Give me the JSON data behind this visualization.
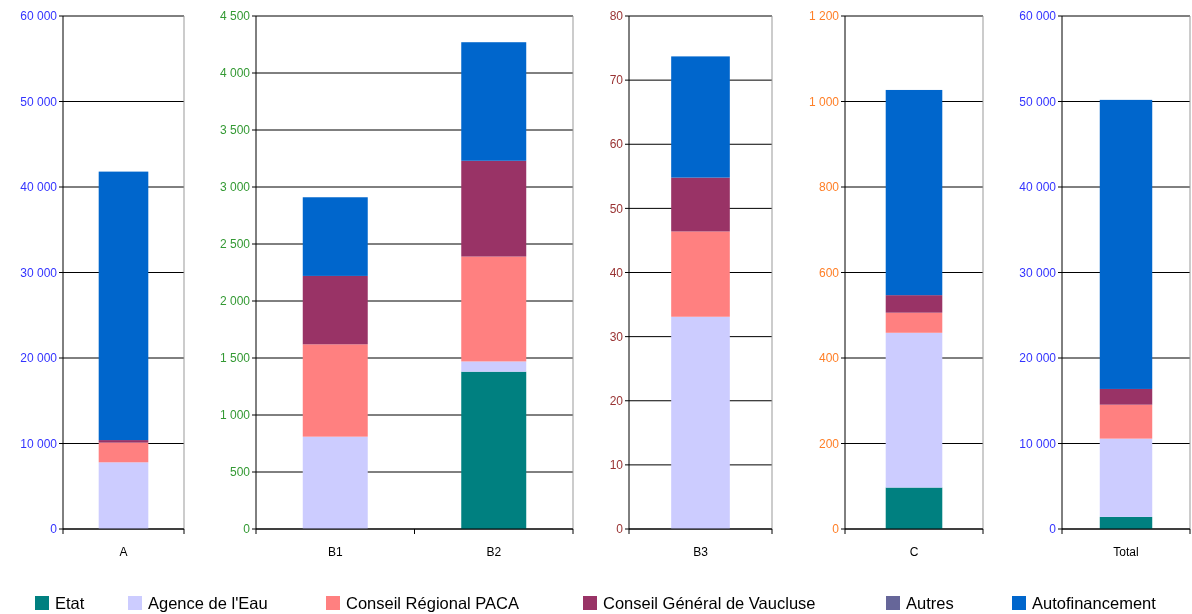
{
  "chart_data": [
    {
      "type": "bar",
      "stacked": true,
      "categories": [
        "A"
      ],
      "ylim": [
        0,
        60000
      ],
      "yticks": [
        0,
        {
          "value": 10000,
          "label": "10 000"
        },
        {
          "value": 20000,
          "label": "20 000"
        },
        {
          "value": 30000,
          "label": "30 000"
        },
        {
          "value": 40000,
          "label": "40 000"
        },
        {
          "value": 50000,
          "label": "50 000"
        },
        {
          "value": 60000,
          "label": "60 000"
        }
      ],
      "grid": "y",
      "legend": "bottom",
      "series": [
        {
          "name": "Etat",
          "color": "#008080",
          "values": [
            0
          ]
        },
        {
          "name": "Agence de l'Eau",
          "color": "#ccccff",
          "values": [
            7800
          ]
        },
        {
          "name": "Conseil Régional PACA",
          "color": "#ff8080",
          "values": [
            2300
          ]
        },
        {
          "name": "Conseil Général de Vaucluse",
          "color": "#993366",
          "values": [
            300
          ]
        },
        {
          "name": "Autres",
          "color": "#666699",
          "values": [
            0
          ]
        },
        {
          "name": "Autofinancement",
          "color": "#0066cc",
          "values": [
            31400
          ]
        }
      ]
    },
    {
      "type": "bar",
      "stacked": true,
      "categories": [
        "B1",
        "B2"
      ],
      "ylim": [
        0,
        4500
      ],
      "yticks": [
        0,
        500,
        {
          "value": 1000,
          "label": "1 000"
        },
        {
          "value": 1500,
          "label": "1 500"
        },
        {
          "value": 2000,
          "label": "2 000"
        },
        {
          "value": 2500,
          "label": "2 500"
        },
        {
          "value": 3000,
          "label": "3 000"
        },
        {
          "value": 3500,
          "label": "3 500"
        },
        {
          "value": 4000,
          "label": "4 000"
        },
        {
          "value": 4500,
          "label": "4 500"
        }
      ],
      "grid": "y",
      "series": [
        {
          "color": "#008080",
          "values": [
            0,
            1380
          ]
        },
        {
          "color": "#ccccff",
          "values": [
            810,
            90
          ]
        },
        {
          "color": "#ff8080",
          "values": [
            810,
            920
          ]
        },
        {
          "color": "#993366",
          "values": [
            600,
            840
          ]
        },
        {
          "color": "#666699",
          "values": [
            0,
            0
          ]
        },
        {
          "color": "#0066cc",
          "values": [
            690,
            1040
          ]
        }
      ]
    },
    {
      "type": "bar",
      "stacked": true,
      "categories": [
        "B3"
      ],
      "ylim": [
        0,
        80
      ],
      "yticks": [
        0,
        10,
        20,
        30,
        40,
        50,
        60,
        70,
        80
      ],
      "grid": "y",
      "series": [
        {
          "color": "#008080",
          "values": [
            0
          ]
        },
        {
          "color": "#ccccff",
          "values": [
            33.1
          ]
        },
        {
          "color": "#ff8080",
          "values": [
            13.3
          ]
        },
        {
          "color": "#993366",
          "values": [
            8.4
          ]
        },
        {
          "color": "#666699",
          "values": [
            0
          ]
        },
        {
          "color": "#0066cc",
          "values": [
            18.9
          ]
        }
      ]
    },
    {
      "type": "bar",
      "stacked": true,
      "categories": [
        "C"
      ],
      "ylim": [
        0,
        1200
      ],
      "yticks": [
        0,
        200,
        400,
        600,
        800,
        {
          "value": 1000,
          "label": "1 000"
        },
        {
          "value": 1200,
          "label": "1 200"
        }
      ],
      "grid": "y",
      "series": [
        {
          "color": "#008080",
          "values": [
            97
          ]
        },
        {
          "color": "#ccccff",
          "values": [
            362
          ]
        },
        {
          "color": "#ff8080",
          "values": [
            47
          ]
        },
        {
          "color": "#993366",
          "values": [
            41
          ]
        },
        {
          "color": "#666699",
          "values": [
            0
          ]
        },
        {
          "color": "#0066cc",
          "values": [
            480
          ]
        }
      ]
    },
    {
      "type": "bar",
      "stacked": true,
      "categories": [
        "Total"
      ],
      "ylim": [
        0,
        60000
      ],
      "yticks": [
        0,
        {
          "value": 10000,
          "label": "10 000"
        },
        {
          "value": 20000,
          "label": "20 000"
        },
        {
          "value": 30000,
          "label": "30 000"
        },
        {
          "value": 40000,
          "label": "40 000"
        },
        {
          "value": 50000,
          "label": "50 000"
        },
        {
          "value": 60000,
          "label": "60 000"
        }
      ],
      "grid": "y",
      "series": [
        {
          "color": "#008080",
          "values": [
            1420
          ]
        },
        {
          "color": "#ccccff",
          "values": [
            9150
          ]
        },
        {
          "color": "#ff8080",
          "values": [
            3970
          ]
        },
        {
          "color": "#993366",
          "values": [
            1840
          ]
        },
        {
          "color": "#666699",
          "values": [
            0
          ]
        },
        {
          "color": "#0066cc",
          "values": [
            33810
          ]
        }
      ]
    }
  ]
}
